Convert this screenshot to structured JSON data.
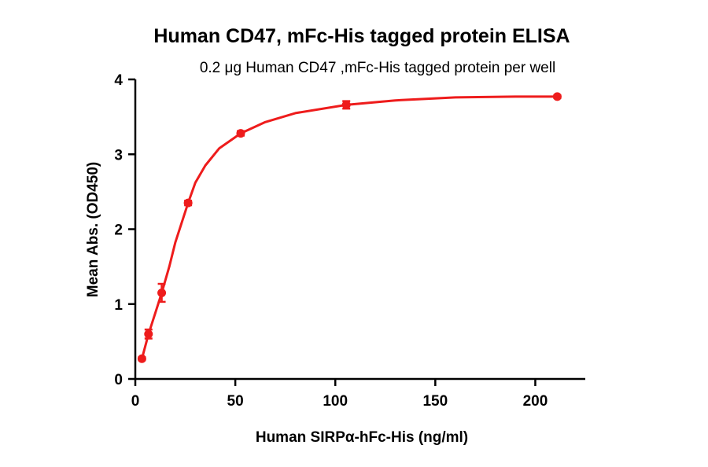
{
  "chart_data": {
    "type": "scatter",
    "title": "Human CD47, mFc-His tagged  protein ELISA",
    "subtitle": "0.2 μg Human CD47 ,mFc-His tagged protein per well",
    "xlabel": "Human SIRPα-hFc-His (ng/ml)",
    "ylabel": "Mean Abs. (OD450)",
    "xlim": [
      0,
      225
    ],
    "ylim": [
      0,
      4
    ],
    "xticks": [
      0,
      50,
      100,
      150,
      200
    ],
    "yticks": [
      0,
      1,
      2,
      3,
      4
    ],
    "grid": false,
    "color": "#ee1c1c",
    "series": [
      {
        "points": [
          {
            "x": 3.3,
            "y": 0.27,
            "err": 0.02
          },
          {
            "x": 6.6,
            "y": 0.6,
            "err": 0.06
          },
          {
            "x": 13.2,
            "y": 1.15,
            "err": 0.12
          },
          {
            "x": 26.4,
            "y": 2.35,
            "err": 0.03
          },
          {
            "x": 52.7,
            "y": 3.28,
            "err": 0.03
          },
          {
            "x": 105.5,
            "y": 3.66,
            "err": 0.05
          },
          {
            "x": 211,
            "y": 3.77,
            "err": 0.02
          }
        ],
        "fit": {
          "x": [
            3.3,
            6.6,
            10,
            13.2,
            17,
            20,
            26.4,
            30,
            35,
            42,
            52.7,
            65,
            80,
            105.5,
            130,
            160,
            190,
            211
          ],
          "y": [
            0.27,
            0.6,
            0.88,
            1.15,
            1.5,
            1.82,
            2.35,
            2.62,
            2.85,
            3.08,
            3.28,
            3.43,
            3.55,
            3.66,
            3.72,
            3.76,
            3.77,
            3.77
          ]
        }
      }
    ]
  }
}
